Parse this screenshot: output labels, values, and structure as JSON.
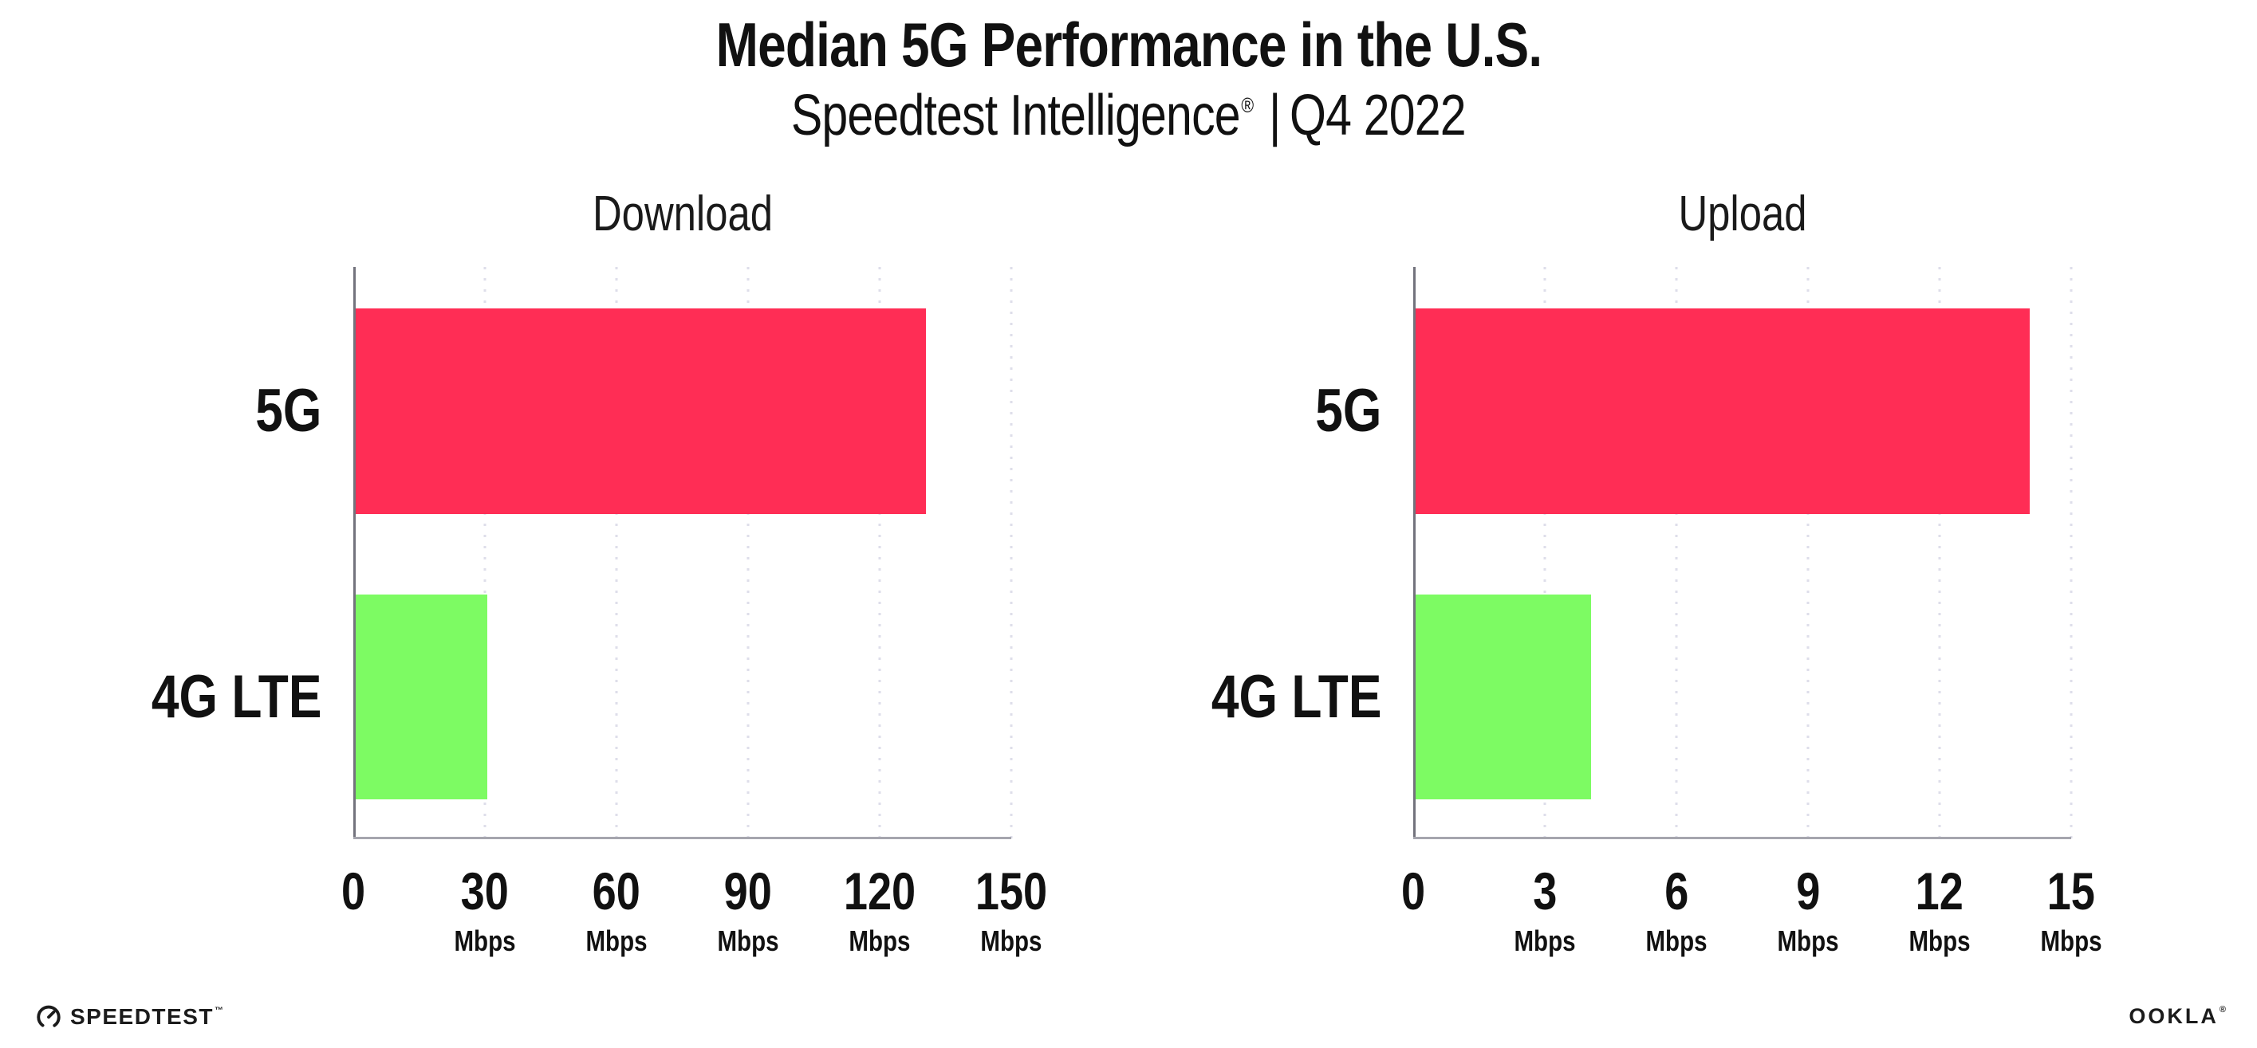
{
  "header": {
    "title": "Median 5G Performance in the U.S.",
    "subtitle_brand": "Speedtest Intelligence",
    "subtitle_registered": "®",
    "subtitle_separator": "|",
    "subtitle_period": "Q4 2022"
  },
  "chart_data": [
    {
      "type": "bar",
      "orientation": "horizontal",
      "title": "Download",
      "categories": [
        "5G",
        "4G LTE"
      ],
      "values": [
        130,
        30
      ],
      "unit": "Mbps",
      "xlim": [
        0,
        150
      ],
      "xticks": [
        0,
        30,
        60,
        90,
        120,
        150
      ],
      "tick_unit_label": "Mbps",
      "bar_colors": [
        "#FF2D55",
        "#7DFB63"
      ],
      "grid": "vertical-dotted",
      "legend": "none"
    },
    {
      "type": "bar",
      "orientation": "horizontal",
      "title": "Upload",
      "categories": [
        "5G",
        "4G LTE"
      ],
      "values": [
        14,
        4
      ],
      "unit": "Mbps",
      "xlim": [
        0,
        15
      ],
      "xticks": [
        0,
        3,
        6,
        9,
        12,
        15
      ],
      "tick_unit_label": "Mbps",
      "bar_colors": [
        "#FF2D55",
        "#7DFB63"
      ],
      "grid": "vertical-dotted",
      "legend": "none"
    }
  ],
  "footer": {
    "speedtest_label": "SPEEDTEST",
    "speedtest_trademark": "™",
    "ookla_label": "OOKLA",
    "ookla_registered": "®"
  },
  "colors": {
    "background": "#FFFFFF",
    "bar_5g": "#FF2D55",
    "bar_4g_lte": "#7DFB63",
    "gridline": "#DEDEEA",
    "y_axis": "#73737D",
    "x_axis": "#A6A6AE",
    "text": "#111111"
  }
}
